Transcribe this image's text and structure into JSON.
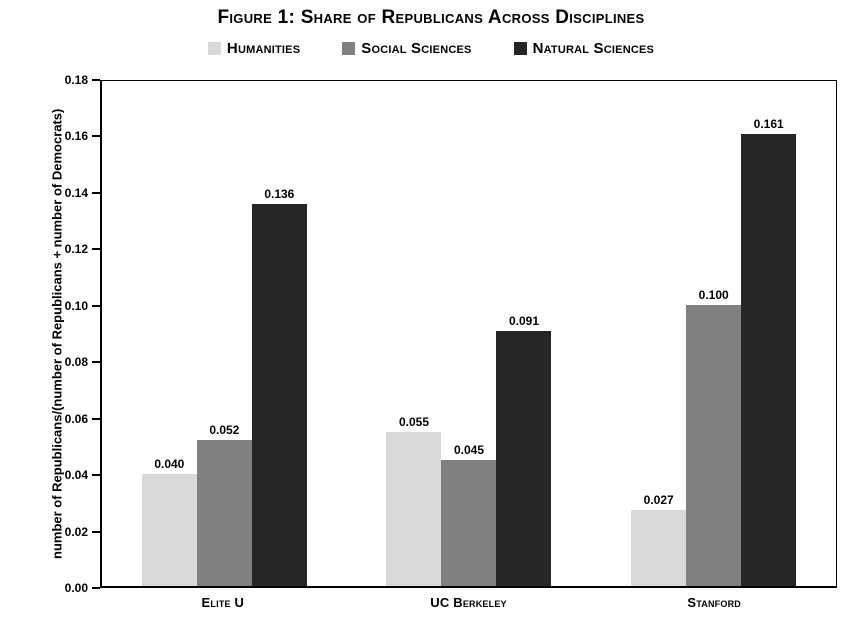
{
  "figure": {
    "title": "Figure 1: Share of Republicans Across Disciplines"
  },
  "chart_data": {
    "type": "bar",
    "title": "Figure 1: Share of Republicans Across Disciplines",
    "categories": [
      "Elite U",
      "UC Berkeley",
      "Stanford"
    ],
    "series": [
      {
        "name": "Humanities",
        "color": "#d9d9d9",
        "values": [
          0.04,
          0.055,
          0.027
        ],
        "labels": [
          "0.040",
          "0.055",
          "0.027"
        ]
      },
      {
        "name": "Social Sciences",
        "color": "#808080",
        "values": [
          0.052,
          0.045,
          0.1
        ],
        "labels": [
          "0.052",
          "0.045",
          "0.100"
        ]
      },
      {
        "name": "Natural Sciences",
        "color": "#262626",
        "values": [
          0.136,
          0.091,
          0.161
        ],
        "labels": [
          "0.136",
          "0.091",
          "0.161"
        ]
      }
    ],
    "xlabel": "",
    "ylabel": "number of Republicans/(number of Republicans + number of Democrats)",
    "ylim": [
      0,
      0.18
    ],
    "yticks": [
      "0.00",
      "0.02",
      "0.04",
      "0.06",
      "0.08",
      "0.10",
      "0.12",
      "0.14",
      "0.16",
      "0.18"
    ],
    "grid": false,
    "legend_position": "top-center",
    "background": "#ffffff",
    "axis_color": "#000000",
    "text_color": "#000000"
  }
}
